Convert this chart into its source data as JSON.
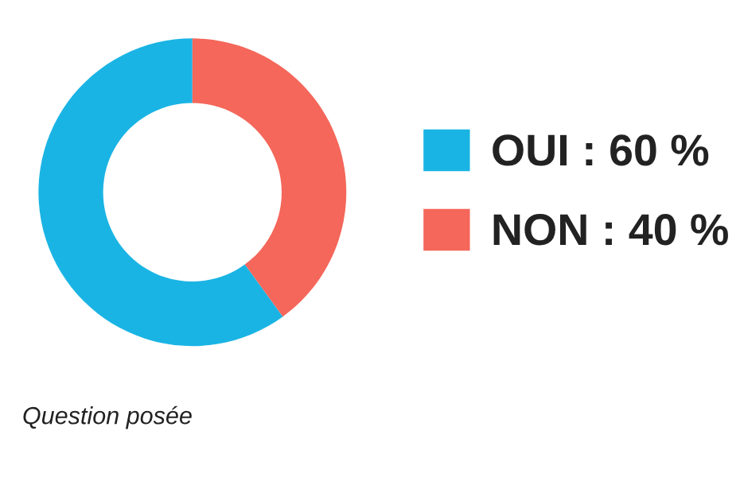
{
  "chart_data": {
    "type": "donut",
    "categories": [
      "OUI",
      "NON"
    ],
    "values": [
      60,
      40
    ],
    "colors": [
      "#1ab4e4",
      "#f4675a"
    ],
    "value_labels": [
      "60 %",
      "40 %"
    ],
    "legend": "right",
    "annotations": [
      "Question posée"
    ]
  }
}
